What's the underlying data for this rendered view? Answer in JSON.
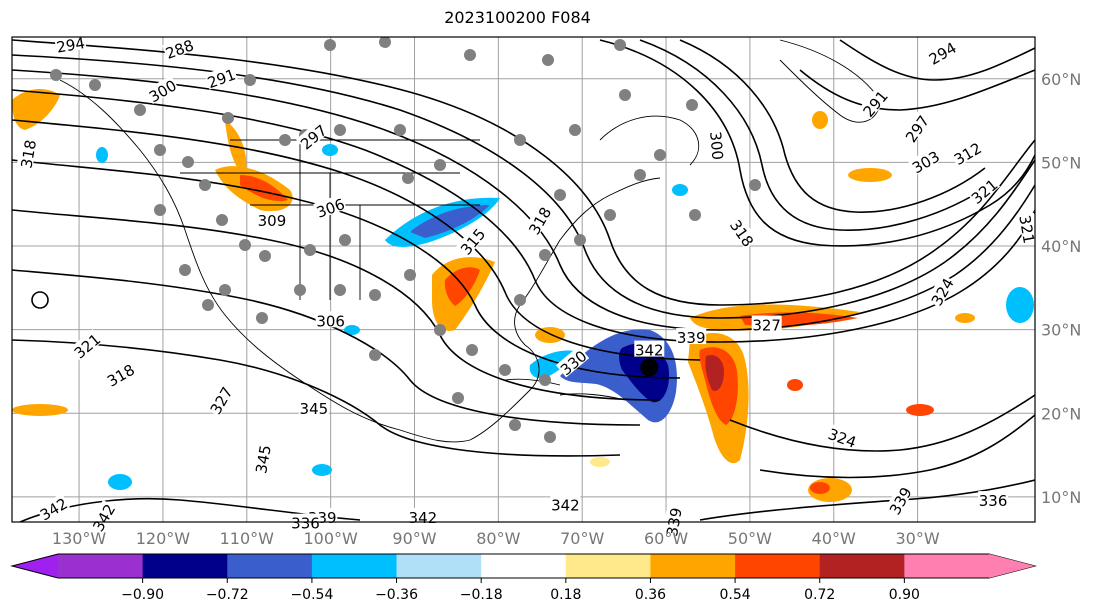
{
  "title": "2023100200 F084",
  "map": {
    "lon_range": [
      -138,
      -16
    ],
    "lat_range": [
      7,
      65
    ],
    "lon_labels": [
      {
        "lon": -130,
        "text": "130°W"
      },
      {
        "lon": -120,
        "text": "120°W"
      },
      {
        "lon": -110,
        "text": "110°W"
      },
      {
        "lon": -100,
        "text": "100°W"
      },
      {
        "lon": -90,
        "text": "90°W"
      },
      {
        "lon": -80,
        "text": "80°W"
      },
      {
        "lon": -70,
        "text": "70°W"
      },
      {
        "lon": -60,
        "text": "60°W"
      },
      {
        "lon": -50,
        "text": "50°W"
      },
      {
        "lon": -40,
        "text": "40°W"
      },
      {
        "lon": -30,
        "text": "30°W"
      }
    ],
    "lat_labels": [
      {
        "lat": 60,
        "text": "60°N"
      },
      {
        "lat": 50,
        "text": "50°N"
      },
      {
        "lat": 40,
        "text": "40°N"
      },
      {
        "lat": 30,
        "text": "30°N"
      },
      {
        "lat": 20,
        "text": "20°N"
      },
      {
        "lat": 10,
        "text": "10°N"
      }
    ],
    "grid": true,
    "marker": {
      "lon": -62,
      "lat": 25.5
    },
    "contour_labels": [
      {
        "text": "294",
        "lon": -131,
        "lat": 64,
        "rot": -10
      },
      {
        "text": "288",
        "lon": -118,
        "lat": 63.5,
        "rot": -20
      },
      {
        "text": "291",
        "lon": -113,
        "lat": 60,
        "rot": -20
      },
      {
        "text": "300",
        "lon": -120,
        "lat": 58.5,
        "rot": -30
      },
      {
        "text": "297",
        "lon": -102,
        "lat": 53,
        "rot": -40
      },
      {
        "text": "318",
        "lon": -136,
        "lat": 51,
        "rot": -80
      },
      {
        "text": "306",
        "lon": -100,
        "lat": 44.5,
        "rot": -20
      },
      {
        "text": "309",
        "lon": -107,
        "lat": 43,
        "rot": 0
      },
      {
        "text": "318",
        "lon": -75,
        "lat": 43,
        "rot": -60
      },
      {
        "text": "315",
        "lon": -83,
        "lat": 40.5,
        "rot": -50
      },
      {
        "text": "300",
        "lon": -54,
        "lat": 52,
        "rot": 85
      },
      {
        "text": "318",
        "lon": -51,
        "lat": 41.5,
        "rot": 55
      },
      {
        "text": "294",
        "lon": -27,
        "lat": 63,
        "rot": -30
      },
      {
        "text": "291",
        "lon": -35,
        "lat": 57,
        "rot": -50
      },
      {
        "text": "297",
        "lon": -30,
        "lat": 54,
        "rot": -55
      },
      {
        "text": "303",
        "lon": -29,
        "lat": 50,
        "rot": -30
      },
      {
        "text": "312",
        "lon": -24,
        "lat": 51,
        "rot": -30
      },
      {
        "text": "321",
        "lon": -22,
        "lat": 46.5,
        "rot": -40
      },
      {
        "text": "321",
        "lon": -17,
        "lat": 42,
        "rot": 80
      },
      {
        "text": "324",
        "lon": -27,
        "lat": 34.5,
        "rot": -60
      },
      {
        "text": "321",
        "lon": -129,
        "lat": 28,
        "rot": -40
      },
      {
        "text": "318",
        "lon": -125,
        "lat": 24.5,
        "rot": -30
      },
      {
        "text": "306",
        "lon": -100,
        "lat": 31,
        "rot": 0
      },
      {
        "text": "327",
        "lon": -113,
        "lat": 21.5,
        "rot": -60
      },
      {
        "text": "345",
        "lon": -102,
        "lat": 20.5,
        "rot": 0
      },
      {
        "text": "345",
        "lon": -108,
        "lat": 14.5,
        "rot": -80
      },
      {
        "text": "330",
        "lon": -71,
        "lat": 26,
        "rot": -40
      },
      {
        "text": "342",
        "lon": -62,
        "lat": 27.5,
        "rot": 0
      },
      {
        "text": "339",
        "lon": -57,
        "lat": 29,
        "rot": 0
      },
      {
        "text": "327",
        "lon": -48,
        "lat": 30.5,
        "rot": 0
      },
      {
        "text": "324",
        "lon": -39,
        "lat": 17,
        "rot": 20
      },
      {
        "text": "336",
        "lon": -21,
        "lat": 9.5,
        "rot": 0
      },
      {
        "text": "339",
        "lon": -32,
        "lat": 9.5,
        "rot": -60
      },
      {
        "text": "342",
        "lon": -133,
        "lat": 8.5,
        "rot": -30
      },
      {
        "text": "342",
        "lon": -127,
        "lat": 7.5,
        "rot": -60
      },
      {
        "text": "339",
        "lon": -101,
        "lat": 7.5,
        "rot": 0
      },
      {
        "text": "336",
        "lon": -103,
        "lat": 6.8,
        "rot": 0
      },
      {
        "text": "342",
        "lon": -89,
        "lat": 7.5,
        "rot": 0
      },
      {
        "text": "342",
        "lon": -72,
        "lat": 9,
        "rot": 0
      },
      {
        "text": "339",
        "lon": -59,
        "lat": 7,
        "rot": -80
      }
    ]
  },
  "colorbar": {
    "colors": [
      "#9b30d0",
      "#00008b",
      "#3a5fcd",
      "#00bfff",
      "#b0e0f8",
      "#ffffff",
      "#ffe98a",
      "#ffa500",
      "#ff4500",
      "#b22222",
      "#ff80b0"
    ],
    "ticks": [
      "−0.90",
      "−0.72",
      "−0.54",
      "−0.36",
      "−0.18",
      "0.18",
      "0.36",
      "0.54",
      "0.72",
      "0.90"
    ],
    "under_color": "#a020f0",
    "over_color": "#ff7fb0"
  }
}
